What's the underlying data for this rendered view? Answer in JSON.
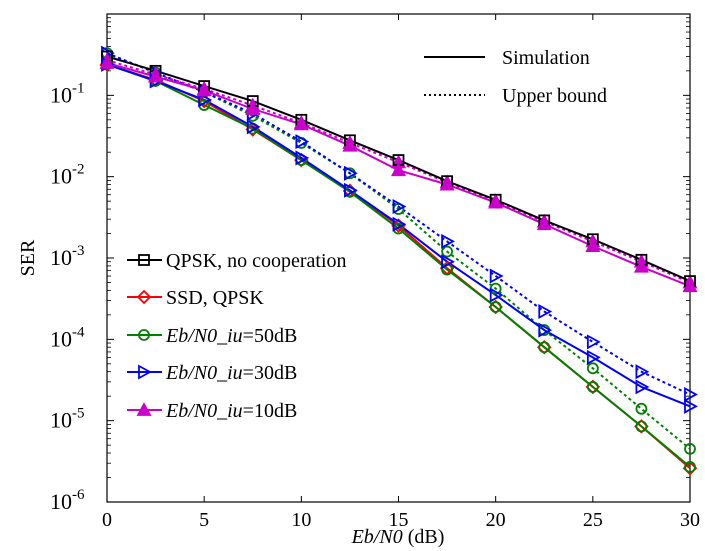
{
  "chart_data": {
    "type": "line",
    "xlabel_parts": {
      "italic": "Eb/N0",
      "rest": " (dB)"
    },
    "ylabel": "SER",
    "xlim": [
      0,
      30
    ],
    "ylim_log10": [
      -6,
      0
    ],
    "y_scale": "log",
    "x_ticks": [
      "0",
      "5",
      "10",
      "15",
      "20",
      "25",
      "30"
    ],
    "y_ticks": [
      {
        "base": "10",
        "exp": "-6"
      },
      {
        "base": "10",
        "exp": "-5"
      },
      {
        "base": "10",
        "exp": "-4"
      },
      {
        "base": "10",
        "exp": "-3"
      },
      {
        "base": "10",
        "exp": "-2"
      },
      {
        "base": "10",
        "exp": "-1"
      }
    ],
    "grid": false,
    "style_legend": {
      "placement": "top-right",
      "entries": [
        {
          "label": "Simulation",
          "dash": "solid"
        },
        {
          "label": "Upper bound",
          "dash": "dotted"
        }
      ]
    },
    "series_legend": {
      "placement": "bottom-left",
      "entries": [
        {
          "label": "QPSK, no cooperation",
          "color": "#000000",
          "marker": "square"
        },
        {
          "label": "SSD, QPSK",
          "color": "#ff0000",
          "marker": "diamond"
        },
        {
          "label_italic": "Eb/N0_iu",
          "label_rest": "=50dB",
          "color": "#008000",
          "marker": "circle"
        },
        {
          "label_italic": "Eb/N0_iu",
          "label_rest": "=30dB",
          "color": "#0000ff",
          "marker": "triangle-right"
        },
        {
          "label_italic": "Eb/N0_iu",
          "label_rest": "=10dB",
          "color": "#cc00cc",
          "marker": "triangle-up"
        }
      ]
    },
    "x": [
      0,
      2.5,
      5,
      7.5,
      10,
      12.5,
      15,
      17.5,
      20,
      22.5,
      25,
      27.5,
      30
    ],
    "series": [
      {
        "key": "qpsk",
        "line": "solid",
        "color": "#000000",
        "marker": "square",
        "values": [
          0.3,
          0.2,
          0.13,
          0.085,
          0.05,
          0.028,
          0.016,
          0.0088,
          0.0052,
          0.0029,
          0.0017,
          0.00095,
          0.00052
        ]
      },
      {
        "key": "ssd",
        "line": "solid",
        "color": "#ff0000",
        "marker": "diamond",
        "values": [
          0.24,
          0.155,
          0.085,
          0.038,
          0.016,
          0.0067,
          0.0025,
          0.00075,
          0.00025,
          8e-05,
          2.6e-05,
          8.5e-06,
          2.6e-06
        ]
      },
      {
        "key": "iu50_sim",
        "line": "solid",
        "color": "#008000",
        "marker": "circle",
        "values": [
          0.24,
          0.15,
          0.076,
          0.039,
          0.016,
          0.0065,
          0.0023,
          0.00072,
          0.00025,
          8e-05,
          2.6e-05,
          8.5e-06,
          2.7e-06
        ]
      },
      {
        "key": "iu50_ub",
        "line": "dotted",
        "color": "#008000",
        "marker": "circle",
        "values": [
          0.33,
          0.19,
          0.11,
          0.056,
          0.026,
          0.011,
          0.004,
          0.0012,
          0.00042,
          0.00013,
          4.4e-05,
          1.4e-05,
          4.5e-06
        ]
      },
      {
        "key": "iu30_sim",
        "line": "solid",
        "color": "#0000ff",
        "marker": "triangle-right",
        "values": [
          0.24,
          0.15,
          0.088,
          0.041,
          0.017,
          0.0068,
          0.0026,
          0.0009,
          0.00035,
          0.00013,
          6e-05,
          2.6e-05,
          1.5e-05
        ]
      },
      {
        "key": "iu30_ub",
        "line": "dotted",
        "color": "#0000ff",
        "marker": "triangle-right",
        "values": [
          0.33,
          0.19,
          0.11,
          0.06,
          0.027,
          0.011,
          0.0043,
          0.0016,
          0.0006,
          0.00022,
          9.3e-05,
          4e-05,
          2.1e-05
        ]
      },
      {
        "key": "iu10_sim",
        "line": "solid",
        "color": "#cc00cc",
        "marker": "triangle-up",
        "values": [
          0.25,
          0.17,
          0.115,
          0.068,
          0.044,
          0.024,
          0.012,
          0.008,
          0.0048,
          0.0026,
          0.0014,
          0.00078,
          0.00045
        ]
      },
      {
        "key": "iu10_ub",
        "line": "dotted",
        "color": "#cc00cc",
        "marker": "triangle-up",
        "values": [
          0.27,
          0.18,
          0.12,
          0.075,
          0.046,
          0.026,
          0.015,
          0.0085,
          0.005,
          0.0028,
          0.0016,
          0.0009,
          0.0005
        ]
      }
    ]
  }
}
